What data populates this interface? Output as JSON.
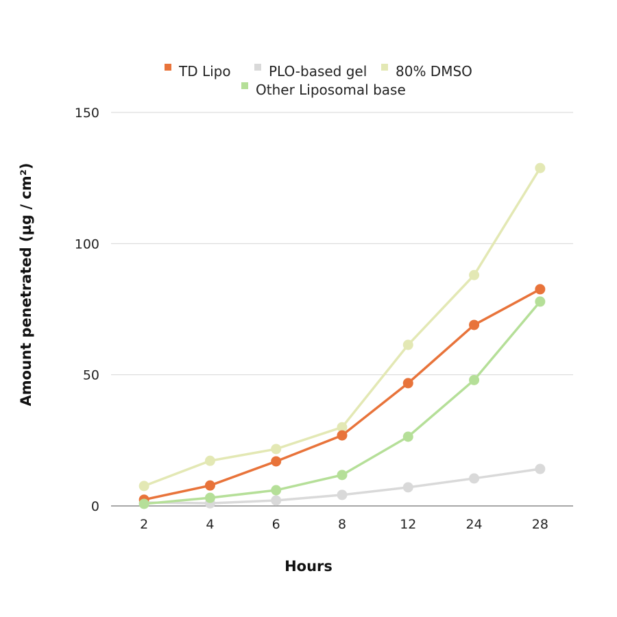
{
  "chart_data": {
    "type": "line",
    "title": "",
    "xlabel": "Hours",
    "ylabel": "Amount penetrated (µg / cm²)",
    "categories": [
      "2",
      "4",
      "6",
      "8",
      "12",
      "24",
      "28"
    ],
    "ylim": [
      0,
      150
    ],
    "yticks": [
      0,
      50,
      100,
      150
    ],
    "grid": true,
    "legend_position": "top",
    "series": [
      {
        "name": "TD Lipo",
        "color": "#E8733A",
        "values": [
          2.4,
          7.8,
          17,
          26.9,
          46.8,
          69,
          82.6
        ]
      },
      {
        "name": "PLO-based gel",
        "color": "#D9D9D9",
        "values": [
          1.3,
          1.0,
          2.1,
          4.2,
          7.1,
          10.5,
          14.1
        ]
      },
      {
        "name": "80% DMSO",
        "color": "#E3E8B4",
        "values": [
          7.6,
          17.2,
          21.7,
          30,
          61.4,
          88,
          128.8
        ]
      },
      {
        "name": "Other Liposomal base",
        "color": "#B5DF98",
        "values": [
          0.8,
          3.1,
          6,
          11.8,
          26.4,
          48,
          77.9
        ]
      }
    ]
  }
}
